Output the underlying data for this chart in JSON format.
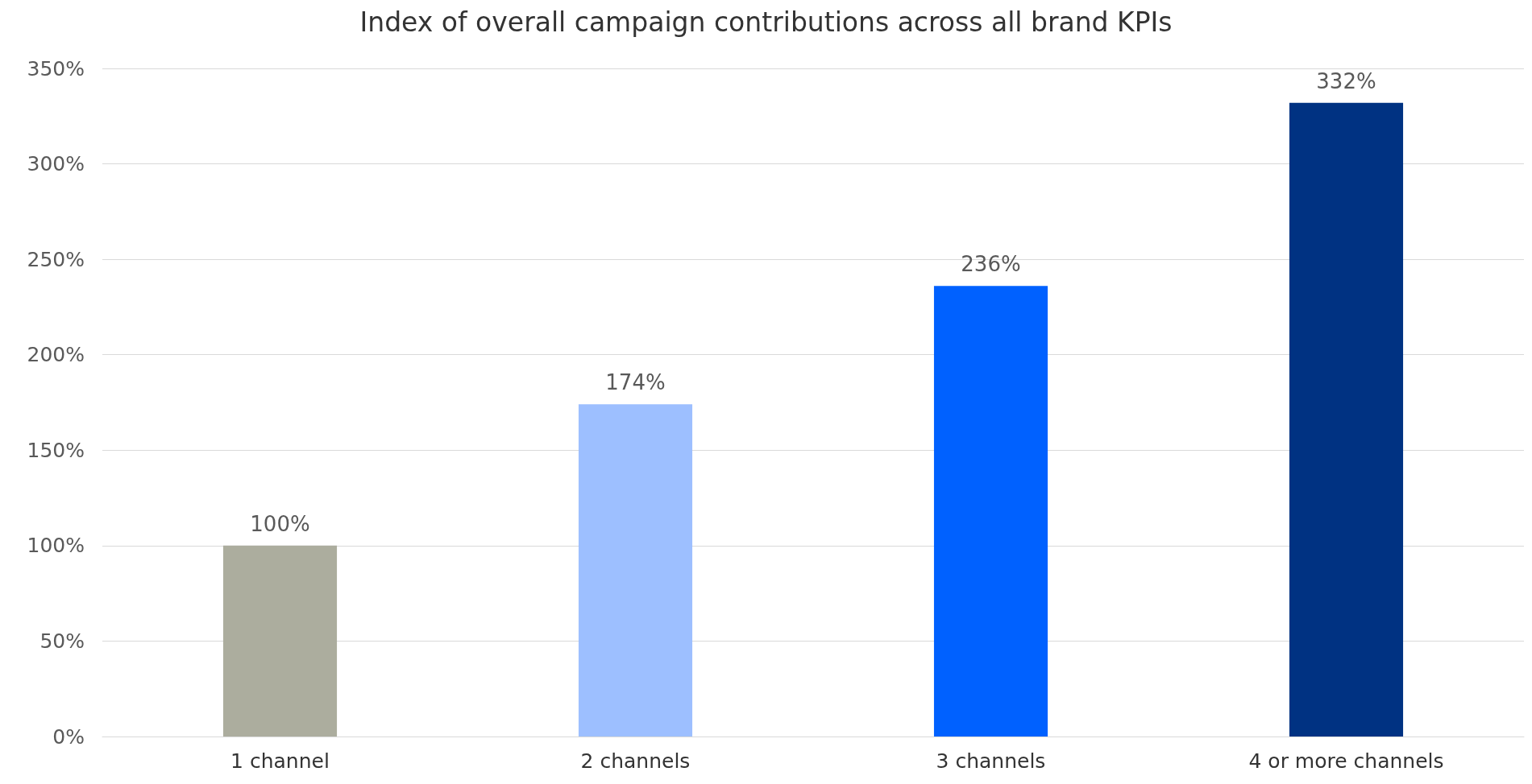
{
  "chart_data": {
    "type": "bar",
    "title": "Index of overall campaign contributions across all brand KPIs",
    "categories": [
      "1 channel",
      "2 channels",
      "3 channels",
      "4 or more channels"
    ],
    "values": [
      100,
      174,
      236,
      332
    ],
    "colors": [
      "#acad9e",
      "#9dbfff",
      "#0061ff",
      "#003282"
    ],
    "value_labels": [
      "100%",
      "174%",
      "236%",
      "332%"
    ],
    "ylim": [
      0,
      350
    ],
    "yticks": [
      {
        "value": 0,
        "label": "0%"
      },
      {
        "value": 50,
        "label": "50%"
      },
      {
        "value": 100,
        "label": "100%"
      },
      {
        "value": 150,
        "label": "150%"
      },
      {
        "value": 200,
        "label": "200%"
      },
      {
        "value": 250,
        "label": "250%"
      },
      {
        "value": 300,
        "label": "300%"
      },
      {
        "value": 350,
        "label": "350%"
      }
    ],
    "grid": "y"
  }
}
